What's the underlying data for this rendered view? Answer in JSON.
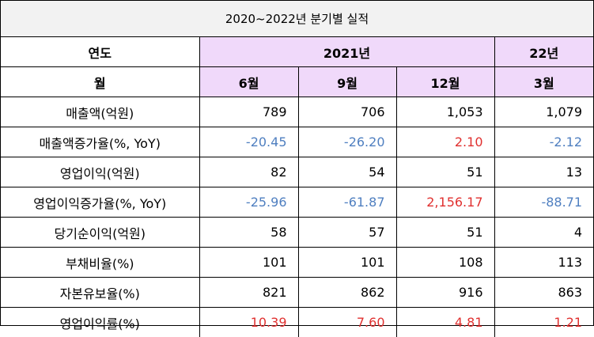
{
  "title": "2020~2022년 분기별 실적",
  "header": {
    "year_label": "연도",
    "year_2021": "2021년",
    "year_22": "22년",
    "month_label": "월",
    "months": [
      "6월",
      "9월",
      "12월",
      "3월"
    ]
  },
  "rows": [
    {
      "label": "매출액(억원)",
      "values": [
        "789",
        "706",
        "1,053",
        "1,079"
      ],
      "colors": [
        "black",
        "black",
        "black",
        "black"
      ]
    },
    {
      "label": "매출액증가율(%, YoY)",
      "values": [
        "-20.45",
        "-26.20",
        "2.10",
        "-2.12"
      ],
      "colors": [
        "blue",
        "blue",
        "red",
        "blue"
      ]
    },
    {
      "label": "영업이익(억원)",
      "values": [
        "82",
        "54",
        "51",
        "13"
      ],
      "colors": [
        "black",
        "black",
        "black",
        "black"
      ]
    },
    {
      "label": "영업이익증가율(%, YoY)",
      "values": [
        "-25.96",
        "-61.87",
        "2,156.17",
        "-88.71"
      ],
      "colors": [
        "blue",
        "blue",
        "red",
        "blue"
      ]
    },
    {
      "label": "당기순이익(억원)",
      "values": [
        "58",
        "57",
        "51",
        "4"
      ],
      "colors": [
        "black",
        "black",
        "black",
        "black"
      ]
    },
    {
      "label": "부채비율(%)",
      "values": [
        "101",
        "101",
        "108",
        "113"
      ],
      "colors": [
        "black",
        "black",
        "black",
        "black"
      ]
    },
    {
      "label": "자본유보율(%)",
      "values": [
        "821",
        "862",
        "916",
        "863"
      ],
      "colors": [
        "black",
        "black",
        "black",
        "black"
      ]
    },
    {
      "label": "영업이익률(%)",
      "values": [
        "10.39",
        "7.60",
        "4.81",
        "1.21"
      ],
      "colors": [
        "red",
        "red",
        "red",
        "red"
      ]
    }
  ],
  "colors": {
    "header_purple": "#f0d9fa",
    "title_gray": "#f2f2f2",
    "negative_blue": "#4f7fc0",
    "positive_red": "#e0302f"
  }
}
